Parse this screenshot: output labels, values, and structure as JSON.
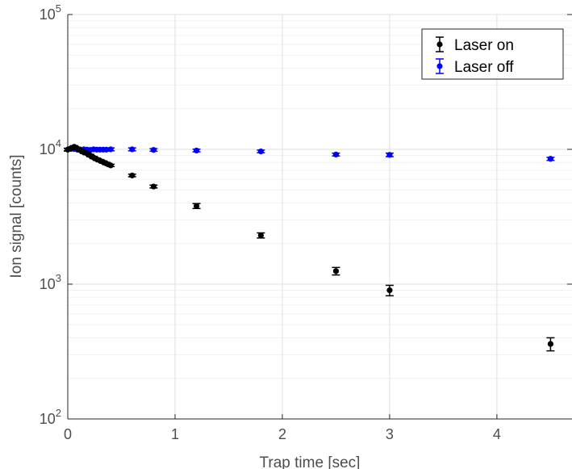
{
  "chart_data": {
    "type": "scatter",
    "xlabel": "Trap time [sec]",
    "ylabel": "Ion signal [counts]",
    "xlim": [
      0,
      4.7
    ],
    "ylim": [
      100,
      100000
    ],
    "yscale": "log",
    "grid": true,
    "legend_position": "top-right",
    "x_ticks": [
      {
        "value": 0,
        "label": "0"
      },
      {
        "value": 1,
        "label": "1"
      },
      {
        "value": 2,
        "label": "2"
      },
      {
        "value": 3,
        "label": "3"
      },
      {
        "value": 4,
        "label": "4"
      }
    ],
    "y_ticks": [
      {
        "value": 100,
        "base": "10",
        "exp": "2"
      },
      {
        "value": 1000,
        "base": "10",
        "exp": "3"
      },
      {
        "value": 10000,
        "base": "10",
        "exp": "4"
      },
      {
        "value": 100000,
        "base": "10",
        "exp": "5"
      }
    ],
    "series": [
      {
        "name": "Laser on",
        "color": "#000000",
        "x": [
          0.0,
          0.03,
          0.06,
          0.09,
          0.12,
          0.15,
          0.18,
          0.21,
          0.24,
          0.27,
          0.3,
          0.33,
          0.36,
          0.4,
          0.6,
          0.8,
          1.2,
          1.8,
          2.5,
          3.0,
          4.5
        ],
        "y": [
          9950,
          10200,
          10450,
          10150,
          9800,
          9500,
          9300,
          9000,
          8700,
          8450,
          8250,
          8050,
          7850,
          7600,
          6400,
          5300,
          3800,
          2300,
          1250,
          900,
          360
        ],
        "err": [
          200,
          200,
          200,
          200,
          200,
          180,
          180,
          180,
          170,
          170,
          160,
          160,
          160,
          150,
          140,
          130,
          160,
          100,
          80,
          80,
          40
        ]
      },
      {
        "name": "Laser off",
        "color": "#0000ff",
        "x": [
          0.0,
          0.03,
          0.06,
          0.09,
          0.12,
          0.15,
          0.18,
          0.21,
          0.24,
          0.27,
          0.3,
          0.33,
          0.36,
          0.4,
          0.6,
          0.8,
          1.2,
          1.8,
          2.5,
          3.0,
          4.5
        ],
        "y": [
          9950,
          10100,
          10050,
          9950,
          9900,
          10000,
          9950,
          9900,
          10000,
          9950,
          9950,
          9950,
          9950,
          10000,
          10000,
          9900,
          9800,
          9650,
          9150,
          9100,
          8500
        ],
        "err": [
          250,
          250,
          250,
          250,
          250,
          250,
          250,
          250,
          250,
          250,
          250,
          250,
          250,
          250,
          250,
          220,
          220,
          220,
          220,
          270,
          220
        ]
      }
    ]
  }
}
